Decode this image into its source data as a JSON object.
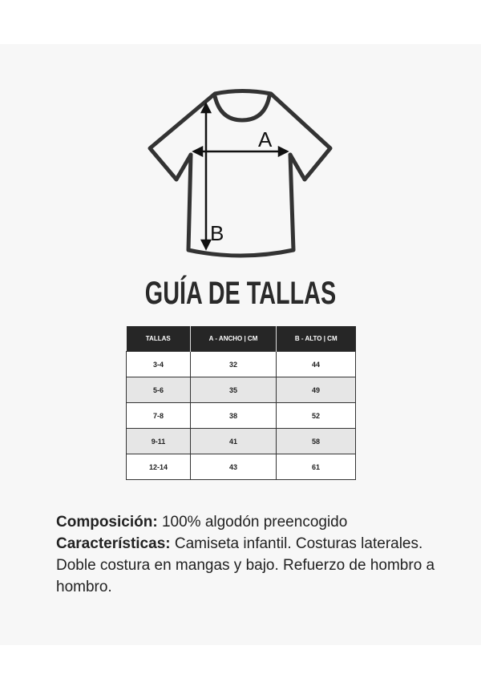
{
  "diagram": {
    "label_a": "A",
    "label_b": "B"
  },
  "title": "GUÍA DE TALLAS",
  "table": {
    "headers": [
      "TALLAS",
      "A - ANCHO | CM",
      "B - ALTO | CM"
    ],
    "rows": [
      [
        "3-4",
        "32",
        "44"
      ],
      [
        "5-6",
        "35",
        "49"
      ],
      [
        "7-8",
        "38",
        "52"
      ],
      [
        "9-11",
        "41",
        "58"
      ],
      [
        "12-14",
        "43",
        "61"
      ]
    ]
  },
  "description": {
    "composition_label": "Composición:",
    "composition_text": " 100% algodón preencogido",
    "features_label": "Características:",
    "features_text": " Camiseta infantil. Costuras laterales. Doble costura en mangas y bajo. Refuerzo de hombro a hombro."
  }
}
